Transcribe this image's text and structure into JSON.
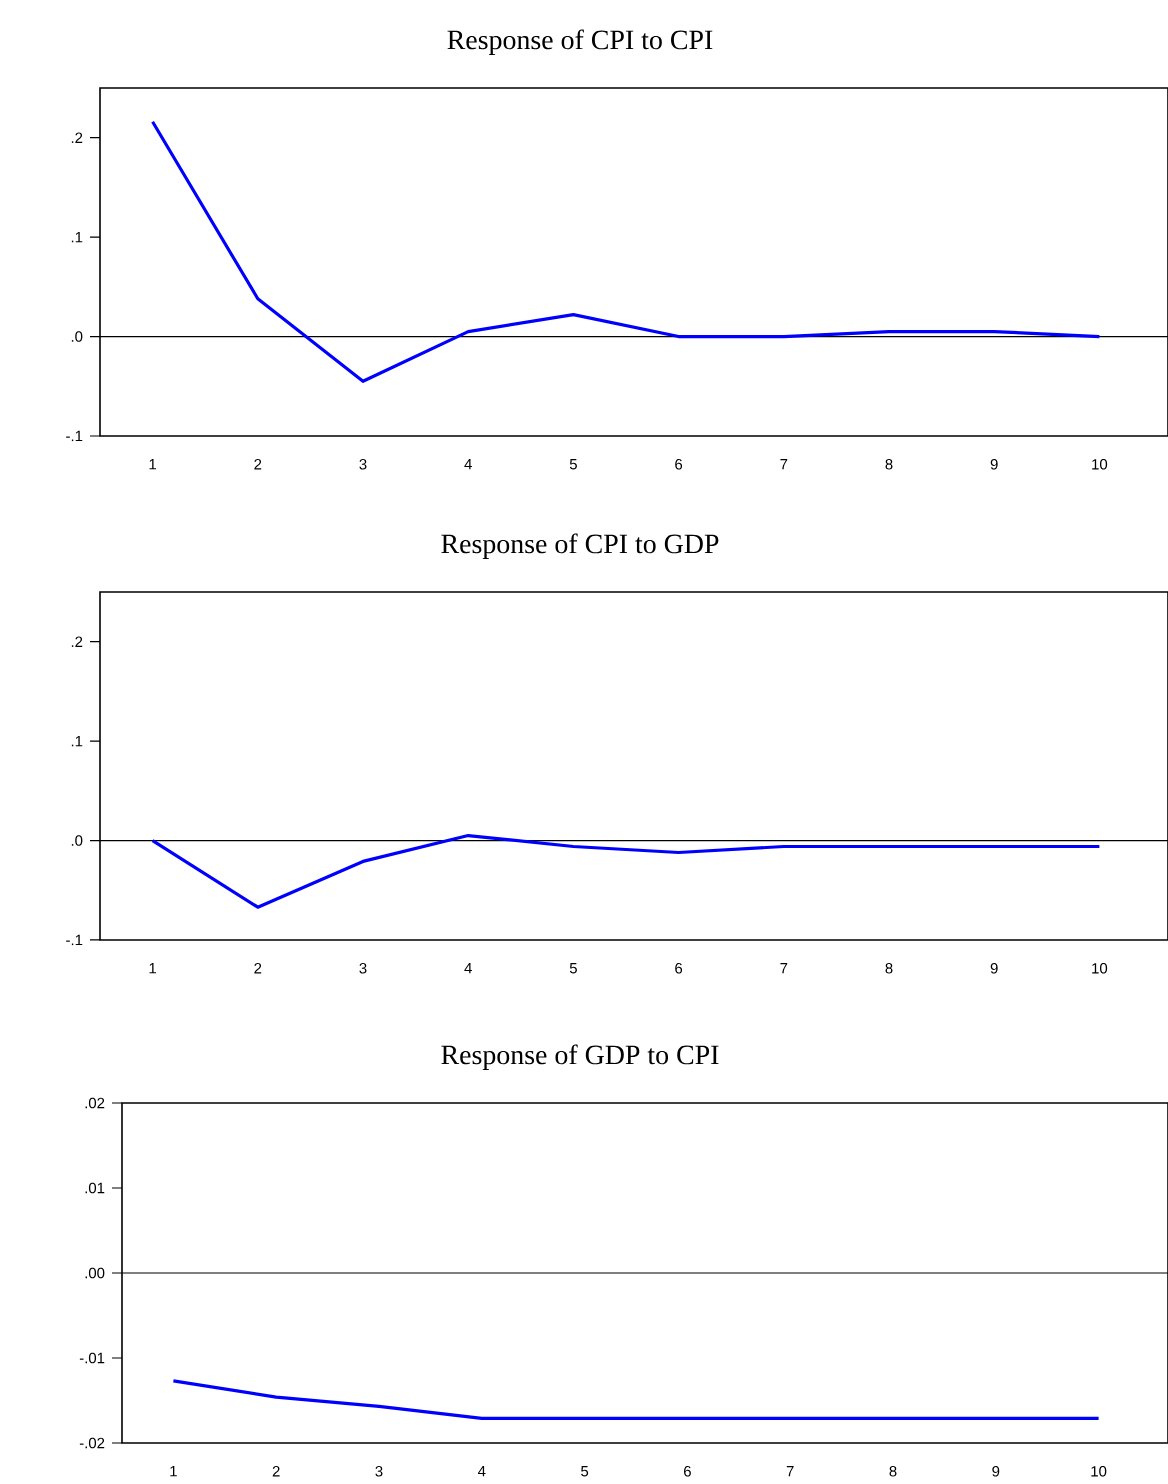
{
  "chart_data": [
    {
      "type": "line",
      "title": "Response of CPI to CPI",
      "categories": [
        "1",
        "2",
        "3",
        "4",
        "5",
        "6",
        "7",
        "8",
        "9",
        "10"
      ],
      "series": [
        {
          "color": "#0000ff",
          "values": [
            0.216,
            0.038,
            -0.045,
            0.005,
            0.022,
            0.0,
            0.0,
            0.005,
            0.005,
            0.0
          ]
        }
      ],
      "ylim": [
        -0.1,
        0.25
      ],
      "yticks": [
        {
          "value": -0.1,
          "label": "-.1"
        },
        {
          "value": 0.0,
          "label": ".0"
        },
        {
          "value": 0.1,
          "label": ".1"
        },
        {
          "value": 0.2,
          "label": ".2"
        }
      ],
      "ref_lines": [
        {
          "axis": "y",
          "value": 0,
          "color": "#000000"
        }
      ],
      "grid": false,
      "marker": "none",
      "line_style": "solid"
    },
    {
      "type": "line",
      "title": "Response of CPI to GDP",
      "categories": [
        "1",
        "2",
        "3",
        "4",
        "5",
        "6",
        "7",
        "8",
        "9",
        "10"
      ],
      "series": [
        {
          "color": "#0000ff",
          "values": [
            0.0,
            -0.067,
            -0.021,
            0.005,
            -0.006,
            -0.012,
            -0.006,
            -0.006,
            -0.006,
            -0.006
          ]
        }
      ],
      "ylim": [
        -0.1,
        0.25
      ],
      "yticks": [
        {
          "value": -0.1,
          "label": "-.1"
        },
        {
          "value": 0.0,
          "label": ".0"
        },
        {
          "value": 0.1,
          "label": ".1"
        },
        {
          "value": 0.2,
          "label": ".2"
        }
      ],
      "ref_lines": [
        {
          "axis": "y",
          "value": 0,
          "color": "#000000"
        }
      ],
      "grid": false,
      "marker": "none",
      "line_style": "solid"
    },
    {
      "type": "line",
      "title": "Response of  GDP to CPI",
      "categories": [
        "1",
        "2",
        "3",
        "4",
        "5",
        "6",
        "7",
        "8",
        "9",
        "10"
      ],
      "series": [
        {
          "color": "#0000ff",
          "values": [
            -0.0127,
            -0.0146,
            -0.0157,
            -0.0171,
            -0.0171,
            -0.0171,
            -0.0171,
            -0.0171,
            -0.0171,
            -0.0171
          ]
        }
      ],
      "ylim": [
        -0.02,
        0.02
      ],
      "yticks": [
        {
          "value": -0.02,
          "label": "-.02"
        },
        {
          "value": -0.01,
          "label": "-.01"
        },
        {
          "value": 0.0,
          "label": ".00"
        },
        {
          "value": 0.01,
          "label": ".01"
        },
        {
          "value": 0.02,
          "label": ".02"
        }
      ],
      "ref_lines": [
        {
          "axis": "y",
          "value": 0,
          "color": "#000000"
        }
      ],
      "grid": false,
      "marker": "none",
      "line_style": "solid"
    }
  ]
}
